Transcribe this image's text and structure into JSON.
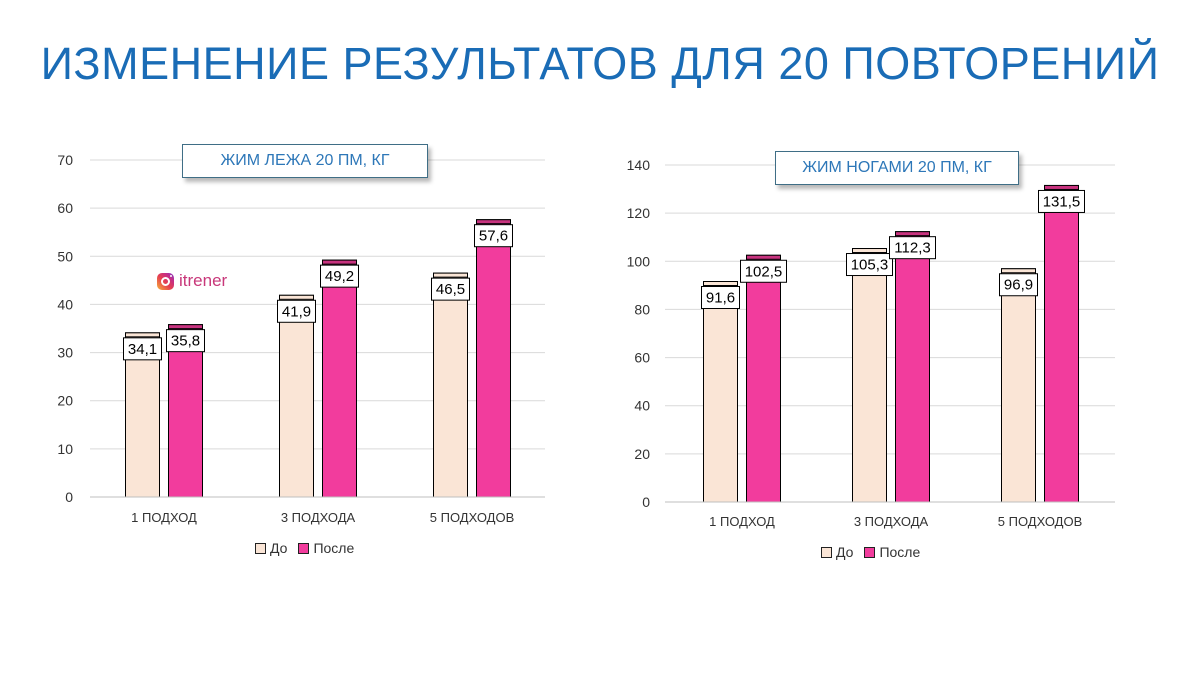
{
  "page": {
    "title": "ИЗМЕНЕНИЕ РЕЗУЛЬТАТОВ ДЛЯ 20 ПОВТОРЕНИЙ",
    "watermark": "itrener",
    "watermark_icon": "instagram-icon"
  },
  "colors": {
    "title": "#1a6cb6",
    "before": "#fae5d6",
    "after": "#f23c9d",
    "after_cap": "#c8337f",
    "grid": "#d9d9d9"
  },
  "chart_data": [
    {
      "type": "bar",
      "title": "ЖИМ ЛЕЖА 20 ПМ, КГ",
      "categories": [
        "1 ПОДХОД",
        "3 ПОДХОДА",
        "5 ПОДХОДОВ"
      ],
      "series": [
        {
          "name": "До",
          "values": [
            34.1,
            41.9,
            46.5
          ],
          "labels": [
            "34,1",
            "41,9",
            "46,5"
          ]
        },
        {
          "name": "После",
          "values": [
            35.8,
            49.2,
            57.6
          ],
          "labels": [
            "35,8",
            "49,2",
            "57,6"
          ]
        }
      ],
      "xlabel": "",
      "ylabel": "",
      "ylim": [
        0,
        70
      ],
      "yticks": [
        0,
        10,
        20,
        30,
        40,
        50,
        60,
        70
      ],
      "grid": true,
      "legend": "bottom"
    },
    {
      "type": "bar",
      "title": "ЖИМ НОГАМИ 20 ПМ, КГ",
      "categories": [
        "1 ПОДХОД",
        "3 ПОДХОДА",
        "5 ПОДХОДОВ"
      ],
      "series": [
        {
          "name": "До",
          "values": [
            91.6,
            105.3,
            96.9
          ],
          "labels": [
            "91,6",
            "105,3",
            "96,9"
          ]
        },
        {
          "name": "После",
          "values": [
            102.5,
            112.3,
            131.5
          ],
          "labels": [
            "102,5",
            "112,3",
            "131,5"
          ]
        }
      ],
      "xlabel": "",
      "ylabel": "",
      "ylim": [
        0,
        140
      ],
      "yticks": [
        0,
        20,
        40,
        60,
        80,
        100,
        120,
        140
      ],
      "grid": true,
      "legend": "bottom"
    }
  ]
}
